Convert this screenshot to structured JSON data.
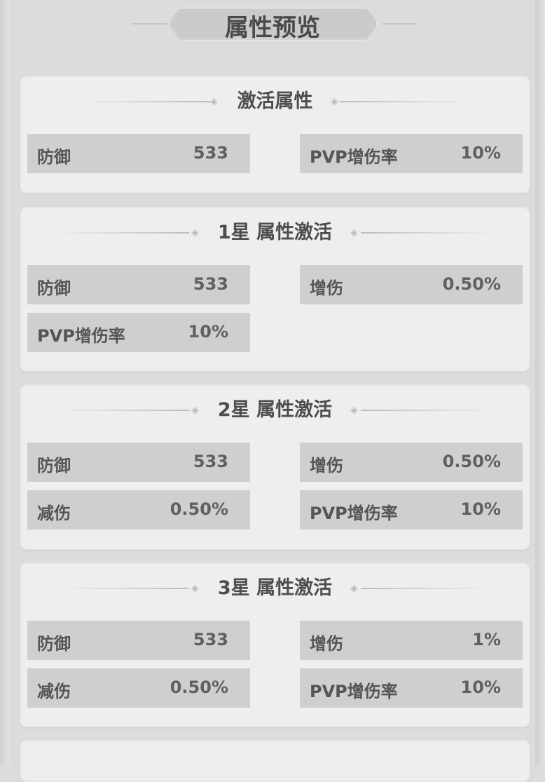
{
  "title": "属性预览",
  "sections": [
    {
      "heading": "激活属性",
      "stats": [
        {
          "label": "防御",
          "value": "533"
        },
        {
          "label": "PVP增伤率",
          "value": "10%"
        }
      ]
    },
    {
      "heading": "1星 属性激活",
      "stats": [
        {
          "label": "防御",
          "value": "533"
        },
        {
          "label": "增伤",
          "value": "0.50%"
        },
        {
          "label": "PVP增伤率",
          "value": "10%"
        }
      ]
    },
    {
      "heading": "2星 属性激活",
      "stats": [
        {
          "label": "防御",
          "value": "533"
        },
        {
          "label": "增伤",
          "value": "0.50%"
        },
        {
          "label": "减伤",
          "value": "0.50%"
        },
        {
          "label": "PVP增伤率",
          "value": "10%"
        }
      ]
    },
    {
      "heading": "3星 属性激活",
      "stats": [
        {
          "label": "防御",
          "value": "533"
        },
        {
          "label": "增伤",
          "value": "1%"
        },
        {
          "label": "减伤",
          "value": "0.50%"
        },
        {
          "label": "PVP增伤率",
          "value": "10%"
        }
      ]
    }
  ]
}
